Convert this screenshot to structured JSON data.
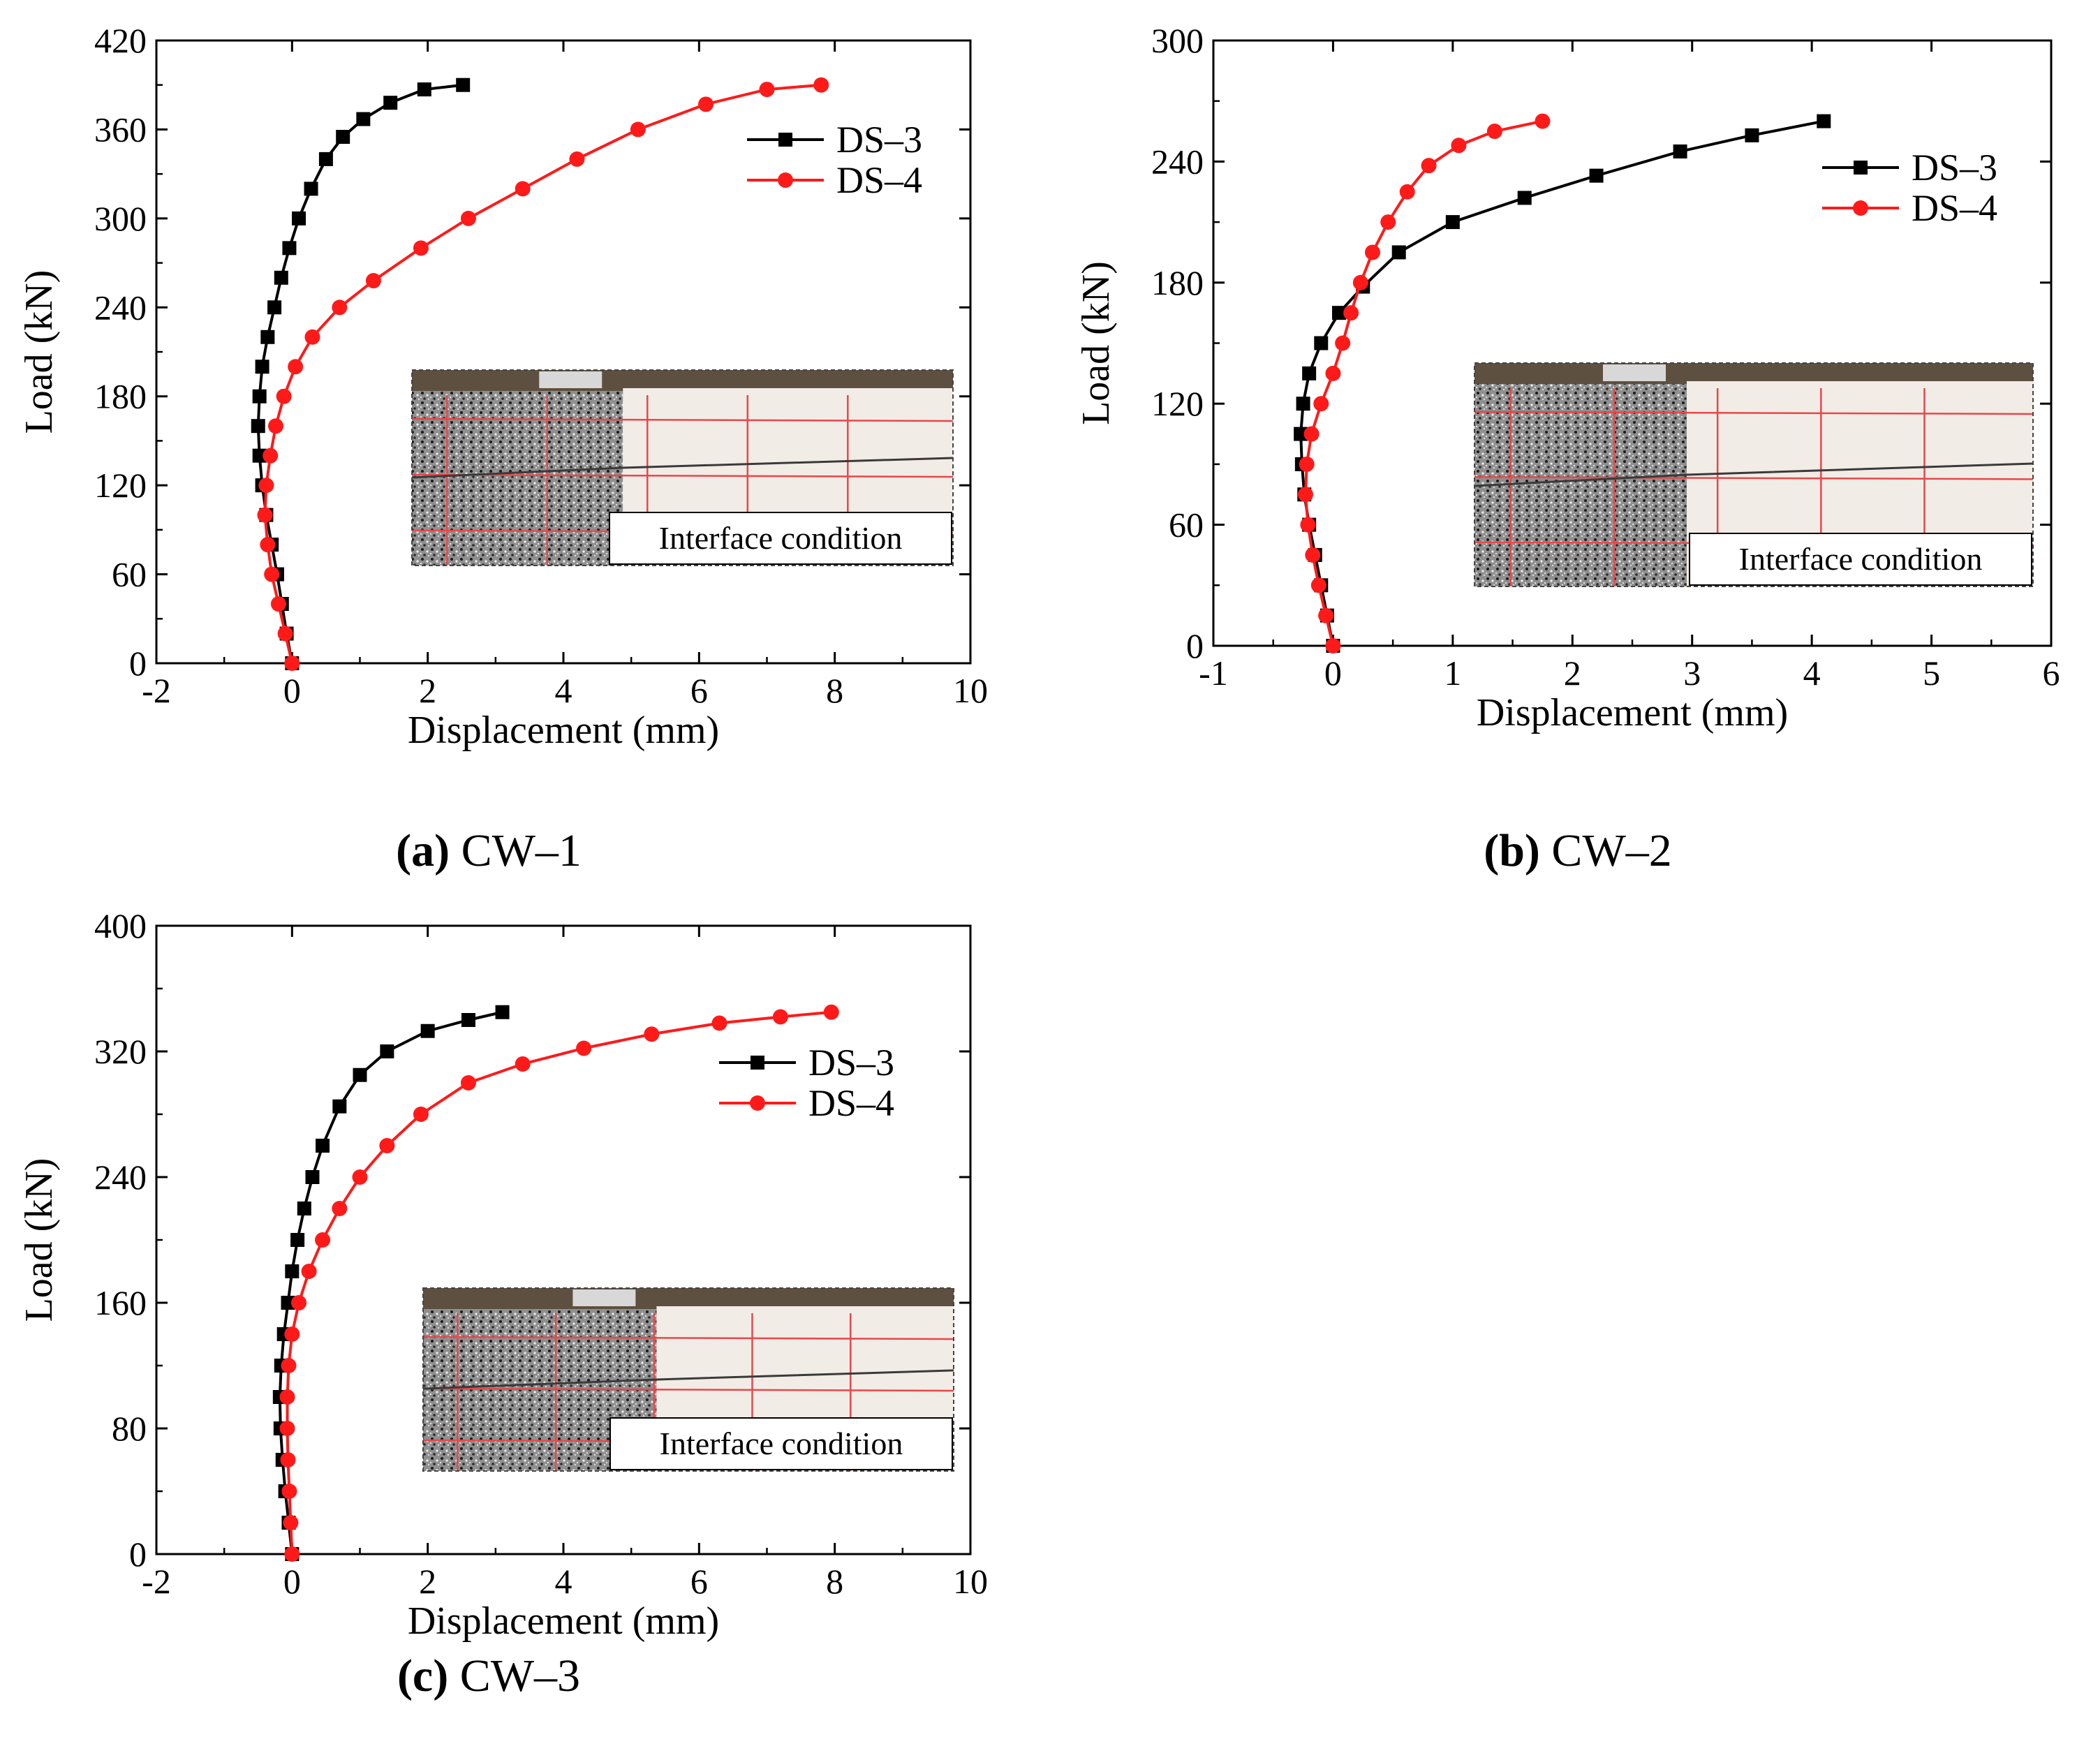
{
  "figure": {
    "inset_label": "Interface condition",
    "colors": {
      "DS-3": "#000000",
      "DS-4": "#ff1a1a",
      "inset_concrete_speckle": "#9a9a9a",
      "inset_white_block": "#f2ece6",
      "inset_grid": "#e8474a",
      "inset_top": "#5e5040"
    }
  },
  "chart_data": [
    {
      "id": "a",
      "type": "line",
      "caption_letter": "(a)",
      "caption_text": " CW–1",
      "xlabel": "Displacement (mm)",
      "ylabel": "Load (kN)",
      "xlim": [
        -2,
        10
      ],
      "ylim": [
        0,
        420
      ],
      "xticks": [
        -2,
        0,
        2,
        4,
        6,
        8,
        10
      ],
      "yticks": [
        0,
        60,
        120,
        180,
        240,
        300,
        360,
        420
      ],
      "legend_position": "top-right",
      "series": [
        {
          "name": "DS–3",
          "marker": "square",
          "color": "#000000",
          "x": [
            0.0,
            -0.08,
            -0.15,
            -0.22,
            -0.3,
            -0.38,
            -0.44,
            -0.48,
            -0.5,
            -0.48,
            -0.44,
            -0.36,
            -0.26,
            -0.16,
            -0.04,
            0.1,
            0.28,
            0.5,
            0.75,
            1.05,
            1.45,
            1.95,
            2.52
          ],
          "y": [
            0,
            20,
            40,
            60,
            80,
            100,
            120,
            140,
            160,
            180,
            200,
            220,
            240,
            260,
            280,
            300,
            320,
            340,
            355,
            367,
            378,
            387,
            390
          ]
        },
        {
          "name": "DS–4",
          "marker": "circle",
          "color": "#ff1a1a",
          "x": [
            0.0,
            -0.1,
            -0.2,
            -0.3,
            -0.36,
            -0.4,
            -0.38,
            -0.32,
            -0.24,
            -0.12,
            0.05,
            0.3,
            0.7,
            1.2,
            1.9,
            2.6,
            3.4,
            4.2,
            5.1,
            6.1,
            7.0,
            7.8
          ],
          "y": [
            0,
            20,
            40,
            60,
            80,
            100,
            120,
            140,
            160,
            180,
            200,
            220,
            240,
            258,
            280,
            300,
            320,
            340,
            360,
            377,
            387,
            390
          ]
        }
      ]
    },
    {
      "id": "b",
      "type": "line",
      "caption_letter": "(b)",
      "caption_text": " CW–2",
      "xlabel": "Displacement (mm)",
      "ylabel": "Load (kN)",
      "xlim": [
        -1,
        6
      ],
      "ylim": [
        0,
        300
      ],
      "xticks": [
        -1,
        0,
        1,
        2,
        3,
        4,
        5,
        6
      ],
      "yticks": [
        0,
        60,
        120,
        180,
        240,
        300
      ],
      "legend_position": "top-right",
      "series": [
        {
          "name": "DS–3",
          "marker": "square",
          "color": "#000000",
          "x": [
            0.0,
            -0.05,
            -0.1,
            -0.15,
            -0.2,
            -0.24,
            -0.26,
            -0.27,
            -0.25,
            -0.2,
            -0.1,
            0.05,
            0.25,
            0.55,
            1.0,
            1.6,
            2.2,
            2.9,
            3.5,
            4.1
          ],
          "y": [
            0,
            15,
            30,
            45,
            60,
            75,
            90,
            105,
            120,
            135,
            150,
            165,
            178,
            195,
            210,
            222,
            233,
            245,
            253,
            260
          ]
        },
        {
          "name": "DS–4",
          "marker": "circle",
          "color": "#ff1a1a",
          "x": [
            0.0,
            -0.06,
            -0.12,
            -0.17,
            -0.21,
            -0.23,
            -0.22,
            -0.18,
            -0.1,
            0.0,
            0.08,
            0.15,
            0.23,
            0.33,
            0.46,
            0.62,
            0.8,
            1.05,
            1.35,
            1.75
          ],
          "y": [
            0,
            15,
            30,
            45,
            60,
            75,
            90,
            105,
            120,
            135,
            150,
            165,
            180,
            195,
            210,
            225,
            238,
            248,
            255,
            260
          ]
        }
      ]
    },
    {
      "id": "c",
      "type": "line",
      "caption_letter": "(c)",
      "caption_text": " CW–3",
      "xlabel": "Displacement (mm)",
      "ylabel": "Load (kN)",
      "xlim": [
        -2,
        10
      ],
      "ylim": [
        0,
        400
      ],
      "xticks": [
        -2,
        0,
        2,
        4,
        6,
        8,
        10
      ],
      "yticks": [
        0,
        80,
        160,
        240,
        320,
        400
      ],
      "legend_position": "top-right",
      "series": [
        {
          "name": "DS–3",
          "marker": "square",
          "color": "#000000",
          "x": [
            0.0,
            -0.05,
            -0.1,
            -0.14,
            -0.17,
            -0.18,
            -0.16,
            -0.12,
            -0.06,
            0.0,
            0.08,
            0.18,
            0.3,
            0.45,
            0.7,
            1.0,
            1.4,
            2.0,
            2.6,
            3.1
          ],
          "y": [
            0,
            20,
            40,
            60,
            80,
            100,
            120,
            140,
            160,
            180,
            200,
            220,
            240,
            260,
            285,
            305,
            320,
            333,
            340,
            345
          ]
        },
        {
          "name": "DS–4",
          "marker": "circle",
          "color": "#ff1a1a",
          "x": [
            0.0,
            -0.02,
            -0.04,
            -0.06,
            -0.07,
            -0.07,
            -0.05,
            0.0,
            0.1,
            0.25,
            0.45,
            0.7,
            1.0,
            1.4,
            1.9,
            2.6,
            3.4,
            4.3,
            5.3,
            6.3,
            7.2,
            7.95
          ],
          "y": [
            0,
            20,
            40,
            60,
            80,
            100,
            120,
            140,
            160,
            180,
            200,
            220,
            240,
            260,
            280,
            300,
            312,
            322,
            331,
            338,
            342,
            345
          ]
        }
      ]
    }
  ]
}
